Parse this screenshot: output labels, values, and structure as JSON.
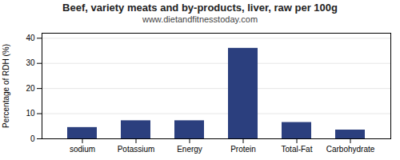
{
  "chart_data": {
    "type": "bar",
    "title": "Beef, variety meats and by-products, liver, raw per 100g",
    "subtitle": "www.dietandfitnesstoday.com",
    "categories": [
      "sodium",
      "Potassium",
      "Energy",
      "Protein",
      "Total-Fat",
      "Carbohydrate"
    ],
    "values": [
      4.5,
      7.2,
      7.2,
      36.0,
      6.5,
      3.5
    ],
    "color": "#2b3f7e",
    "ylabel": "Percentage of RDH (%)",
    "ylim": [
      0,
      42
    ],
    "yticks": [
      0,
      10,
      20,
      30,
      40
    ],
    "grid": true
  }
}
